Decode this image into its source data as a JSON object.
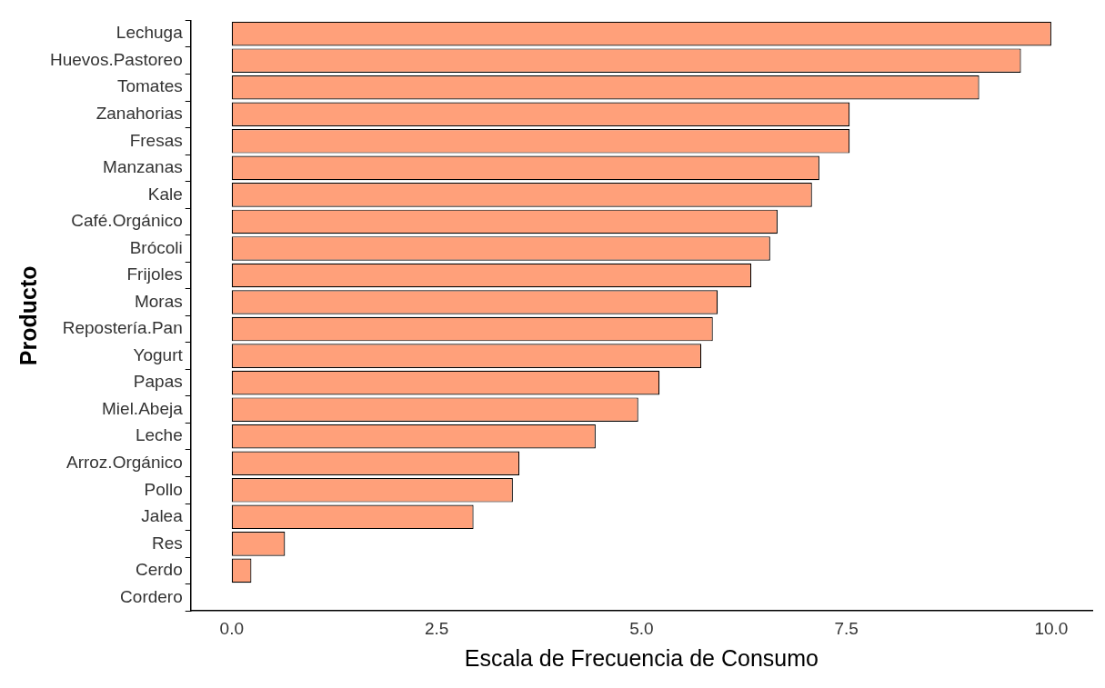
{
  "chart_data": {
    "type": "bar",
    "orientation": "horizontal",
    "xlabel": "Escala de Frecuencia de Consumo",
    "ylabel": "Producto",
    "categories": [
      "Lechuga",
      "Huevos.Pastoreo",
      "Tomates",
      "Zanahorias",
      "Fresas",
      "Manzanas",
      "Kale",
      "Café.Orgánico",
      "Brócoli",
      "Frijoles",
      "Moras",
      "Repostería.Pan",
      "Yogurt",
      "Papas",
      "Miel.Abeja",
      "Leche",
      "Arroz.Orgánico",
      "Pollo",
      "Jalea",
      "Res",
      "Cerdo",
      "Cordero"
    ],
    "values": [
      10.0,
      9.63,
      9.12,
      7.54,
      7.54,
      7.17,
      7.08,
      6.66,
      6.57,
      6.34,
      5.93,
      5.87,
      5.73,
      5.22,
      4.96,
      4.44,
      3.51,
      3.43,
      2.95,
      0.65,
      0.24,
      0
    ],
    "color": "#ffa07a",
    "xlim": [
      -0.5,
      10.5
    ],
    "xticks": [
      {
        "value": 0,
        "label": "0.0"
      },
      2.5,
      {
        "value": 5,
        "label": "5.0"
      },
      7.5,
      {
        "value": 10,
        "label": "10.0"
      }
    ],
    "grid": false,
    "legend": false
  }
}
